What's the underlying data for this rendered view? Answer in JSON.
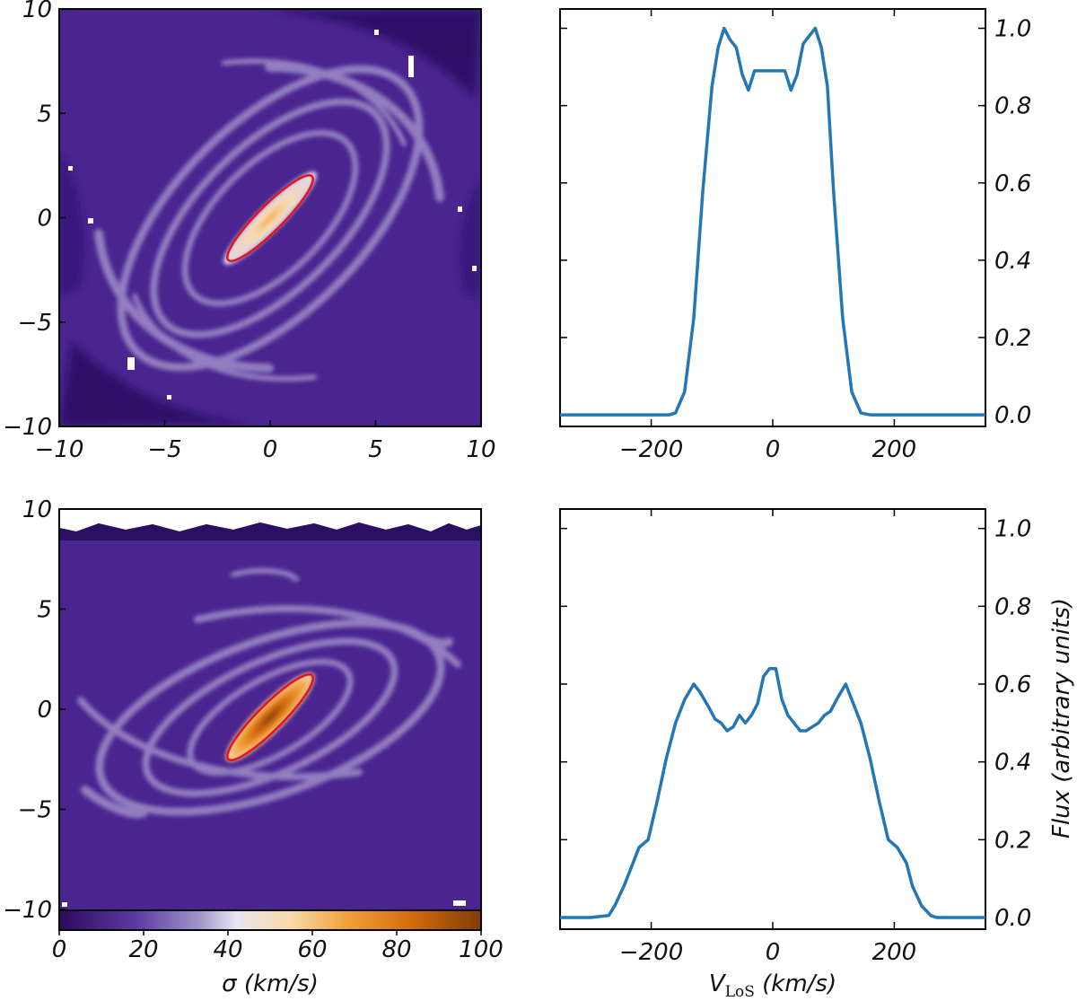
{
  "colors": {
    "map_background": "#4a2590",
    "map_dark": "#2b0f63",
    "map_arm": "#cdc6e6",
    "ellipse": "#e8121a",
    "line": "#2477b4",
    "colormap": [
      "#2d0a5e",
      "#5a3aa0",
      "#9f93c8",
      "#e8e6f1",
      "#f8d9a8",
      "#f2a13c",
      "#d26a0d",
      "#7f3b08"
    ]
  },
  "chart_data": [
    {
      "type": "heatmap",
      "panel": "top-left",
      "xlim": [
        -10,
        10
      ],
      "ylim": [
        -10,
        10
      ],
      "xticks": [
        "−10",
        "−5",
        "0",
        "5",
        "10"
      ],
      "yticks": [
        "−10",
        "−5",
        "0",
        "5",
        "10"
      ],
      "aperture_ellipse": {
        "center": [
          0,
          0
        ],
        "semi_major": 2.8,
        "semi_minor": 0.6,
        "angle_deg": -45
      }
    },
    {
      "type": "line",
      "panel": "top-right",
      "xlim": [
        -350,
        350
      ],
      "ylim": [
        -0.03,
        1.05
      ],
      "xticks": [
        "−200",
        "0",
        "200"
      ],
      "xtick_values": [
        -200,
        0,
        200
      ],
      "yticks": [
        "0.0",
        "0.2",
        "0.4",
        "0.6",
        "0.8",
        "1.0"
      ],
      "ytick_values": [
        0,
        0.2,
        0.4,
        0.6,
        0.8,
        1.0
      ],
      "x": [
        -350,
        -170,
        -160,
        -145,
        -130,
        -115,
        -100,
        -90,
        -80,
        -70,
        -60,
        -50,
        -40,
        -30,
        -20,
        -10,
        0,
        10,
        20,
        30,
        40,
        50,
        60,
        70,
        80,
        90,
        100,
        115,
        130,
        145,
        160,
        170,
        350
      ],
      "y": [
        0,
        0,
        0.005,
        0.06,
        0.25,
        0.58,
        0.85,
        0.95,
        1.0,
        0.97,
        0.95,
        0.88,
        0.84,
        0.89,
        0.89,
        0.89,
        0.89,
        0.89,
        0.89,
        0.84,
        0.88,
        0.96,
        0.98,
        1.0,
        0.95,
        0.85,
        0.58,
        0.25,
        0.06,
        0.005,
        0,
        0,
        0
      ]
    },
    {
      "type": "heatmap",
      "panel": "bottom-left",
      "xlim": [
        -10,
        10
      ],
      "ylim": [
        -10,
        10
      ],
      "yticks": [
        "−10",
        "−5",
        "0",
        "5",
        "10"
      ],
      "aperture_ellipse": {
        "center": [
          0,
          0
        ],
        "semi_major": 2.8,
        "semi_minor": 0.6,
        "angle_deg": -45
      },
      "colorbar": {
        "range": [
          0,
          100
        ],
        "ticks": [
          "0",
          "20",
          "40",
          "60",
          "80",
          "100"
        ],
        "tick_values": [
          0,
          20,
          40,
          60,
          80,
          100
        ],
        "label": "σ (km/s)"
      }
    },
    {
      "type": "line",
      "panel": "bottom-right",
      "xlim": [
        -350,
        350
      ],
      "ylim": [
        -0.03,
        1.05
      ],
      "xticks": [
        "−200",
        "0",
        "200"
      ],
      "xtick_values": [
        -200,
        0,
        200
      ],
      "yticks": [
        "0.0",
        "0.2",
        "0.4",
        "0.6",
        "0.8",
        "1.0"
      ],
      "ytick_values": [
        0,
        0.2,
        0.4,
        0.6,
        0.8,
        1.0
      ],
      "xlabel": "V",
      "xlabel_subscript": "LoS",
      "xlabel_suffix": " (km/s)",
      "ylabel": "Flux (arbitrary units)",
      "x": [
        -350,
        -300,
        -270,
        -260,
        -245,
        -230,
        -220,
        -205,
        -190,
        -175,
        -160,
        -145,
        -130,
        -120,
        -105,
        -95,
        -85,
        -75,
        -65,
        -55,
        -45,
        -35,
        -25,
        -15,
        -5,
        5,
        15,
        25,
        35,
        45,
        55,
        65,
        75,
        85,
        95,
        105,
        120,
        130,
        145,
        160,
        175,
        190,
        205,
        220,
        230,
        245,
        260,
        270,
        280,
        300,
        350
      ],
      "y": [
        0,
        0,
        0.005,
        0.03,
        0.08,
        0.14,
        0.18,
        0.2,
        0.3,
        0.41,
        0.5,
        0.56,
        0.6,
        0.58,
        0.54,
        0.51,
        0.5,
        0.48,
        0.49,
        0.52,
        0.5,
        0.52,
        0.55,
        0.62,
        0.64,
        0.64,
        0.56,
        0.52,
        0.5,
        0.48,
        0.48,
        0.49,
        0.5,
        0.52,
        0.53,
        0.56,
        0.6,
        0.56,
        0.5,
        0.41,
        0.3,
        0.2,
        0.18,
        0.14,
        0.08,
        0.03,
        0.005,
        0,
        0,
        0,
        0
      ]
    }
  ]
}
